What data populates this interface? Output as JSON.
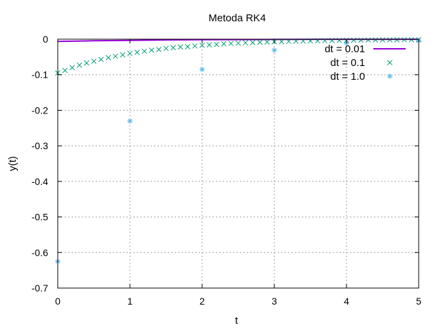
{
  "chart_data": {
    "type": "line",
    "title": "Metoda RK4",
    "xlabel": "t",
    "ylabel": "y(t)",
    "xlim": [
      0,
      5
    ],
    "ylim": [
      -0.7,
      0
    ],
    "xticks": [
      "0",
      "1",
      "2",
      "3",
      "4",
      "5"
    ],
    "yticks": [
      "0",
      "-0.1",
      "-0.2",
      "-0.3",
      "-0.4",
      "-0.5",
      "-0.6",
      "-0.7"
    ],
    "grid": true,
    "legend_position": "top-right",
    "series": [
      {
        "name": "dt = 0.01",
        "style": "line",
        "color": "#9400d3",
        "x": [
          0,
          0.5,
          1,
          1.5,
          2,
          2.5,
          3,
          3.5,
          4,
          4.5,
          5
        ],
        "y": [
          -0.0063,
          -0.0045,
          -0.0032,
          -0.0022,
          -0.0016,
          -0.0011,
          -0.0008,
          -0.0006,
          -0.0004,
          -0.0003,
          -0.0002
        ]
      },
      {
        "name": "dt = 0.1",
        "style": "x-marker",
        "color": "#009e73",
        "x": [
          0,
          0.1,
          0.2,
          0.3,
          0.4,
          0.5,
          0.6,
          0.7,
          0.8,
          0.9,
          1.0,
          1.1,
          1.2,
          1.3,
          1.4,
          1.5,
          1.6,
          1.7,
          1.8,
          1.9,
          2.0,
          2.1,
          2.2,
          2.3,
          2.4,
          2.5,
          2.6,
          2.7,
          2.8,
          2.9,
          3.0,
          3.1,
          3.2,
          3.3,
          3.4,
          3.5,
          3.6,
          3.7,
          3.8,
          3.9,
          4.0,
          4.1,
          4.2,
          4.3,
          4.4,
          4.5,
          4.6,
          4.7,
          4.8,
          4.9,
          5.0
        ],
        "y": [
          -0.095,
          -0.088,
          -0.08,
          -0.073,
          -0.067,
          -0.062,
          -0.057,
          -0.052,
          -0.048,
          -0.044,
          -0.04,
          -0.037,
          -0.034,
          -0.031,
          -0.029,
          -0.026,
          -0.024,
          -0.022,
          -0.021,
          -0.019,
          -0.017,
          -0.016,
          -0.015,
          -0.013,
          -0.012,
          -0.011,
          -0.01,
          -0.0095,
          -0.0087,
          -0.008,
          -0.0073,
          -0.0067,
          -0.0062,
          -0.0057,
          -0.0052,
          -0.0048,
          -0.0044,
          -0.004,
          -0.0037,
          -0.0034,
          -0.0031,
          -0.0029,
          -0.0026,
          -0.0024,
          -0.0022,
          -0.002,
          -0.0019,
          -0.0017,
          -0.0016,
          -0.0015,
          -0.0013
        ]
      },
      {
        "name": "dt = 1.0",
        "style": "star-marker",
        "color": "#56b4e9",
        "x": [
          0,
          1,
          2,
          3,
          4,
          5
        ],
        "y": [
          -0.625,
          -0.23,
          -0.085,
          -0.031,
          -0.011,
          -0.004
        ]
      }
    ]
  }
}
